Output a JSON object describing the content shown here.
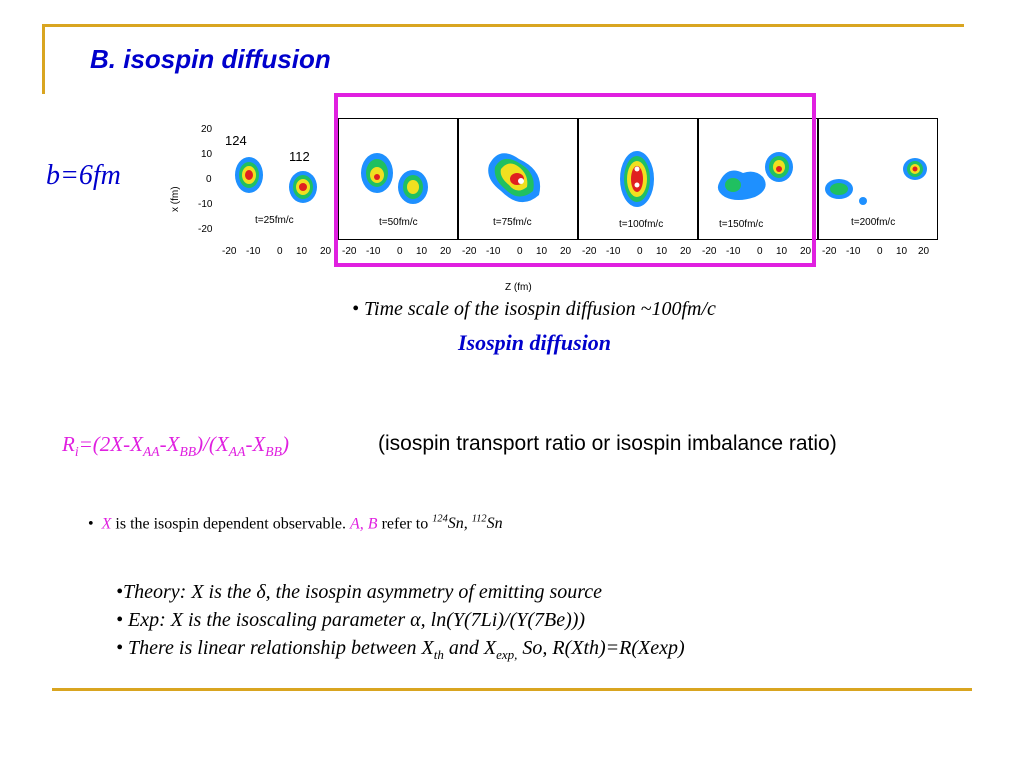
{
  "title": "B.  isospin diffusion",
  "impact_parameter": "b=6fm",
  "figure": {
    "y_axis_title": "x (fm)",
    "x_axis_title": "Z (fm)",
    "y_ticks": [
      "20",
      "10",
      "0",
      "-10",
      "-20"
    ],
    "x_ticks": [
      "-20",
      "-10",
      "0",
      "10",
      "20"
    ],
    "projectile_label": "124",
    "target_label": "112",
    "times": [
      "t=25fm/c",
      "t=50fm/c",
      "t=75fm/c",
      "t=100fm/c",
      "t=150fm/c",
      "t=200fm/c"
    ],
    "highlight_color": "#e020e0"
  },
  "time_scale_note": "• Time scale of the isospin diffusion ~100fm/c",
  "diffusion_label": "Isospin diffusion",
  "ratio": {
    "description": "(isospin transport ratio or isospin imbalance ratio)"
  },
  "bullet_x": {
    "rest": " is the isospin dependent observable. ",
    "ab": "A, B",
    "refer": "  refer to "
  },
  "theory": {
    "line1": "•Theory: X is the δ, the isospin asymmetry of emitting source",
    "line2": "• Exp:   X is the isoscaling parameter α, ln(Y(7Li)/(Y(7Be)))",
    "line3_a": "• There is linear relationship between X",
    "line3_b": " and X",
    "line3_c": " So, R(Xth)=R(Xexp)"
  },
  "colors": {
    "accent_blue": "#0000cc",
    "magenta": "#e020e0",
    "rule_gold": "#d9a520"
  }
}
